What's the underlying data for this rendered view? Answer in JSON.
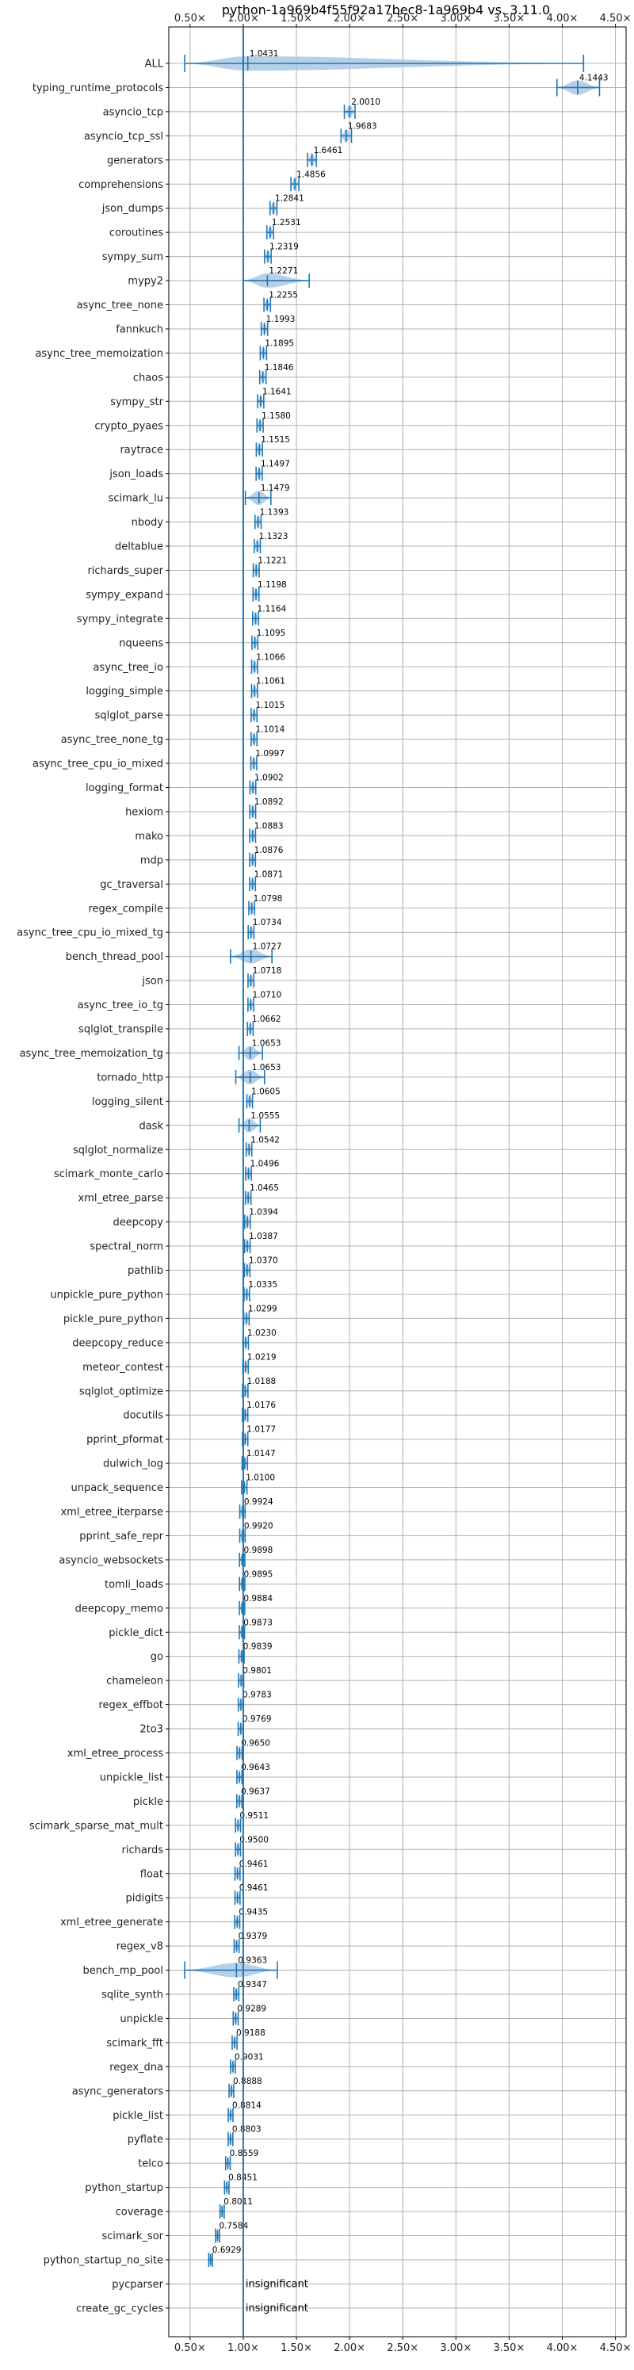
{
  "chart_data": {
    "type": "violin",
    "title": "python-1a969b4f55f92a17bec8-1a969b4 vs. 3.11.0",
    "x_ticks": [
      "0.50×",
      "1.00×",
      "1.50×",
      "2.00×",
      "2.50×",
      "3.00×",
      "3.50×",
      "4.00×",
      "4.50×"
    ],
    "x_tick_values": [
      0.5,
      1.0,
      1.5,
      2.0,
      2.5,
      3.0,
      3.5,
      4.0,
      4.5
    ],
    "xlim": [
      0.3,
      4.6
    ],
    "grid": true,
    "reference_line": 1.0,
    "colors": {
      "violin": "#1f77b4",
      "violin_fill": "#aac8e4",
      "grid": "#b0b0b0",
      "reference": "#1f77b4"
    },
    "insignificant_label": "insignificant",
    "benchmarks": [
      {
        "name": "ALL",
        "value": 1.0431,
        "label": "1.0431",
        "low": 0.45,
        "high": 4.2,
        "wide": true
      },
      {
        "name": "typing_runtime_protocols",
        "value": 4.1443,
        "label": "4.1443",
        "low": 3.95,
        "high": 4.35,
        "wide": true
      },
      {
        "name": "asyncio_tcp",
        "value": 2.001,
        "label": "2.0010"
      },
      {
        "name": "asyncio_tcp_ssl",
        "value": 1.9683,
        "label": "1.9683"
      },
      {
        "name": "generators",
        "value": 1.6461,
        "label": "1.6461"
      },
      {
        "name": "comprehensions",
        "value": 1.4856,
        "label": "1.4856"
      },
      {
        "name": "json_dumps",
        "value": 1.2841,
        "label": "1.2841"
      },
      {
        "name": "coroutines",
        "value": 1.2531,
        "label": "1.2531"
      },
      {
        "name": "sympy_sum",
        "value": 1.2319,
        "label": "1.2319"
      },
      {
        "name": "mypy2",
        "value": 1.2271,
        "label": "1.2271",
        "low": 1.0,
        "high": 1.62
      },
      {
        "name": "async_tree_none",
        "value": 1.2255,
        "label": "1.2255"
      },
      {
        "name": "fannkuch",
        "value": 1.1993,
        "label": "1.1993"
      },
      {
        "name": "async_tree_memoization",
        "value": 1.1895,
        "label": "1.1895"
      },
      {
        "name": "chaos",
        "value": 1.1846,
        "label": "1.1846"
      },
      {
        "name": "sympy_str",
        "value": 1.1641,
        "label": "1.1641"
      },
      {
        "name": "crypto_pyaes",
        "value": 1.158,
        "label": "1.1580"
      },
      {
        "name": "raytrace",
        "value": 1.1515,
        "label": "1.1515"
      },
      {
        "name": "json_loads",
        "value": 1.1497,
        "label": "1.1497"
      },
      {
        "name": "scimark_lu",
        "value": 1.1479,
        "label": "1.1479",
        "low": 1.02,
        "high": 1.26
      },
      {
        "name": "nbody",
        "value": 1.1393,
        "label": "1.1393"
      },
      {
        "name": "deltablue",
        "value": 1.1323,
        "label": "1.1323"
      },
      {
        "name": "richards_super",
        "value": 1.1221,
        "label": "1.1221"
      },
      {
        "name": "sympy_expand",
        "value": 1.1198,
        "label": "1.1198"
      },
      {
        "name": "sympy_integrate",
        "value": 1.1164,
        "label": "1.1164"
      },
      {
        "name": "nqueens",
        "value": 1.1095,
        "label": "1.1095"
      },
      {
        "name": "async_tree_io",
        "value": 1.1066,
        "label": "1.1066"
      },
      {
        "name": "logging_simple",
        "value": 1.1061,
        "label": "1.1061"
      },
      {
        "name": "sqlglot_parse",
        "value": 1.1015,
        "label": "1.1015"
      },
      {
        "name": "async_tree_none_tg",
        "value": 1.1014,
        "label": "1.1014"
      },
      {
        "name": "async_tree_cpu_io_mixed",
        "value": 1.0997,
        "label": "1.0997"
      },
      {
        "name": "logging_format",
        "value": 1.0902,
        "label": "1.0902"
      },
      {
        "name": "hexiom",
        "value": 1.0892,
        "label": "1.0892"
      },
      {
        "name": "mako",
        "value": 1.0883,
        "label": "1.0883"
      },
      {
        "name": "mdp",
        "value": 1.0876,
        "label": "1.0876"
      },
      {
        "name": "gc_traversal",
        "value": 1.0871,
        "label": "1.0871"
      },
      {
        "name": "regex_compile",
        "value": 1.0798,
        "label": "1.0798"
      },
      {
        "name": "async_tree_cpu_io_mixed_tg",
        "value": 1.0734,
        "label": "1.0734"
      },
      {
        "name": "bench_thread_pool",
        "value": 1.0727,
        "label": "1.0727",
        "low": 0.88,
        "high": 1.27
      },
      {
        "name": "json",
        "value": 1.0718,
        "label": "1.0718"
      },
      {
        "name": "async_tree_io_tg",
        "value": 1.071,
        "label": "1.0710"
      },
      {
        "name": "sqlglot_transpile",
        "value": 1.0662,
        "label": "1.0662"
      },
      {
        "name": "async_tree_memoization_tg",
        "value": 1.0653,
        "label": "1.0653",
        "low": 0.96,
        "high": 1.18
      },
      {
        "name": "tornado_http",
        "value": 1.0653,
        "label": "1.0653",
        "low": 0.93,
        "high": 1.2
      },
      {
        "name": "logging_silent",
        "value": 1.0605,
        "label": "1.0605"
      },
      {
        "name": "dask",
        "value": 1.0555,
        "label": "1.0555",
        "low": 0.96,
        "high": 1.16
      },
      {
        "name": "sqlglot_normalize",
        "value": 1.0542,
        "label": "1.0542"
      },
      {
        "name": "scimark_monte_carlo",
        "value": 1.0496,
        "label": "1.0496"
      },
      {
        "name": "xml_etree_parse",
        "value": 1.0465,
        "label": "1.0465"
      },
      {
        "name": "deepcopy",
        "value": 1.0394,
        "label": "1.0394"
      },
      {
        "name": "spectral_norm",
        "value": 1.0387,
        "label": "1.0387"
      },
      {
        "name": "pathlib",
        "value": 1.037,
        "label": "1.0370"
      },
      {
        "name": "unpickle_pure_python",
        "value": 1.0335,
        "label": "1.0335"
      },
      {
        "name": "pickle_pure_python",
        "value": 1.0299,
        "label": "1.0299"
      },
      {
        "name": "deepcopy_reduce",
        "value": 1.023,
        "label": "1.0230"
      },
      {
        "name": "meteor_contest",
        "value": 1.0219,
        "label": "1.0219"
      },
      {
        "name": "sqlglot_optimize",
        "value": 1.0188,
        "label": "1.0188"
      },
      {
        "name": "docutils",
        "value": 1.0176,
        "label": "1.0176"
      },
      {
        "name": "pprint_pformat",
        "value": 1.0177,
        "label": "1.0177"
      },
      {
        "name": "dulwich_log",
        "value": 1.0147,
        "label": "1.0147"
      },
      {
        "name": "unpack_sequence",
        "value": 1.01,
        "label": "1.0100"
      },
      {
        "name": "xml_etree_iterparse",
        "value": 0.9924,
        "label": "0.9924"
      },
      {
        "name": "pprint_safe_repr",
        "value": 0.992,
        "label": "0.9920"
      },
      {
        "name": "asyncio_websockets",
        "value": 0.9898,
        "label": "0.9898"
      },
      {
        "name": "tomli_loads",
        "value": 0.9895,
        "label": "0.9895"
      },
      {
        "name": "deepcopy_memo",
        "value": 0.9884,
        "label": "0.9884"
      },
      {
        "name": "pickle_dict",
        "value": 0.9873,
        "label": "0.9873"
      },
      {
        "name": "go",
        "value": 0.9839,
        "label": "0.9839"
      },
      {
        "name": "chameleon",
        "value": 0.9801,
        "label": "0.9801"
      },
      {
        "name": "regex_effbot",
        "value": 0.9783,
        "label": "0.9783"
      },
      {
        "name": "2to3",
        "value": 0.9769,
        "label": "0.9769"
      },
      {
        "name": "xml_etree_process",
        "value": 0.965,
        "label": "0.9650"
      },
      {
        "name": "unpickle_list",
        "value": 0.9643,
        "label": "0.9643"
      },
      {
        "name": "pickle",
        "value": 0.9637,
        "label": "0.9637"
      },
      {
        "name": "scimark_sparse_mat_mult",
        "value": 0.9511,
        "label": "0.9511"
      },
      {
        "name": "richards",
        "value": 0.95,
        "label": "0.9500"
      },
      {
        "name": "float",
        "value": 0.9461,
        "label": "0.9461"
      },
      {
        "name": "pidigits",
        "value": 0.9461,
        "label": "0.9461"
      },
      {
        "name": "xml_etree_generate",
        "value": 0.9435,
        "label": "0.9435"
      },
      {
        "name": "regex_v8",
        "value": 0.9379,
        "label": "0.9379"
      },
      {
        "name": "bench_mp_pool",
        "value": 0.9363,
        "label": "0.9363",
        "low": 0.45,
        "high": 1.32,
        "wide": true
      },
      {
        "name": "sqlite_synth",
        "value": 0.9347,
        "label": "0.9347"
      },
      {
        "name": "unpickle",
        "value": 0.9289,
        "label": "0.9289"
      },
      {
        "name": "scimark_fft",
        "value": 0.9188,
        "label": "0.9188"
      },
      {
        "name": "regex_dna",
        "value": 0.9031,
        "label": "0.9031"
      },
      {
        "name": "async_generators",
        "value": 0.8888,
        "label": "0.8888"
      },
      {
        "name": "pickle_list",
        "value": 0.8814,
        "label": "0.8814"
      },
      {
        "name": "pyflate",
        "value": 0.8803,
        "label": "0.8803"
      },
      {
        "name": "telco",
        "value": 0.8559,
        "label": "0.8559"
      },
      {
        "name": "python_startup",
        "value": 0.8451,
        "label": "0.8451"
      },
      {
        "name": "coverage",
        "value": 0.8011,
        "label": "0.8011"
      },
      {
        "name": "scimark_sor",
        "value": 0.7584,
        "label": "0.7584"
      },
      {
        "name": "python_startup_no_site",
        "value": 0.6929,
        "label": "0.6929"
      },
      {
        "name": "pycparser",
        "value": null,
        "label": "insignificant"
      },
      {
        "name": "create_gc_cycles",
        "value": null,
        "label": "insignificant"
      }
    ]
  }
}
